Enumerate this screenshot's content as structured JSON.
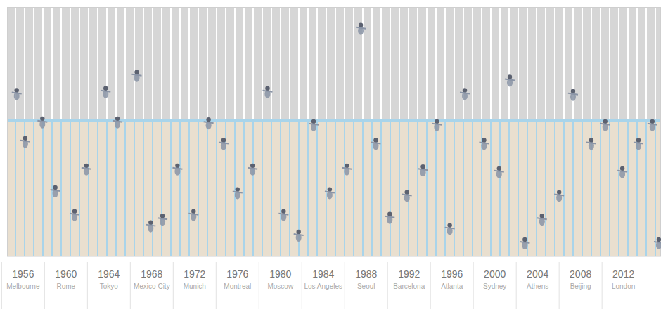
{
  "chart_data": {
    "type": "scatter",
    "xticks": [
      1956,
      1960,
      1964,
      1968,
      1972,
      1976,
      1980,
      1984,
      1988,
      1992,
      1996,
      2000,
      2004,
      2008,
      2012
    ],
    "cities": [
      "Melbourne",
      "Rome",
      "Tokyo",
      "Mexico City",
      "Munich",
      "Montreal",
      "Moscow",
      "Los Angeles",
      "Seoul",
      "Barcelona",
      "Atlanta",
      "Sydney",
      "Athens",
      "Beijing",
      "London"
    ],
    "xlim": [
      1954.5,
      2015.5
    ],
    "ylim": [
      0,
      80
    ],
    "tick_labels": "x",
    "grid": false,
    "marker": "circle",
    "color": "#8a94a6",
    "x": [
      1955.4,
      1957.8,
      1956.2,
      1959.0,
      1960.8,
      1961.9,
      1963.7,
      1964.8,
      1966.6,
      1967.9,
      1969.0,
      1970.4,
      1971.9,
      1973.3,
      1974.7,
      1976.0,
      1977.4,
      1978.8,
      1980.3,
      1981.7,
      1983.1,
      1984.6,
      1986.2,
      1987.5,
      1988.9,
      1990.2,
      1991.8,
      1993.3,
      1994.6,
      1995.8,
      1997.2,
      1999.0,
      2000.4,
      2001.4,
      2002.8,
      2004.4,
      2006.0,
      2007.3,
      2009.0,
      2010.3,
      2011.9,
      2013.4,
      2014.7,
      2015.3
    ],
    "values": [
      52.4,
      43.3,
      37.0,
      21.2,
      13.6,
      28.2,
      53.0,
      43.3,
      58.2,
      10.0,
      12.1,
      28.2,
      13.6,
      43.0,
      36.4,
      20.6,
      28.2,
      53.0,
      13.6,
      7.0,
      42.4,
      20.6,
      28.2,
      73.3,
      36.4,
      12.7,
      19.7,
      27.9,
      42.4,
      9.1,
      52.4,
      36.4,
      27.3,
      56.7,
      4.5,
      12.1,
      19.7,
      52.1,
      36.4,
      42.4,
      27.3,
      36.4,
      42.4,
      4.5
    ]
  }
}
